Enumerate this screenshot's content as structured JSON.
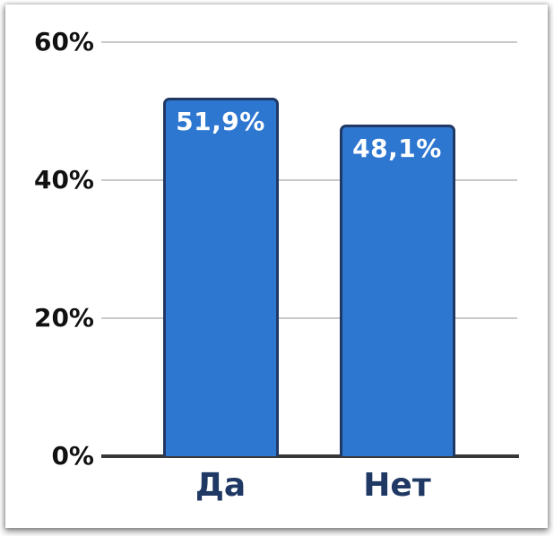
{
  "chart_data": {
    "type": "bar",
    "title": "",
    "xlabel": "",
    "ylabel": "",
    "categories": [
      "Да",
      "Нет"
    ],
    "values": [
      51.9,
      48.1
    ],
    "value_labels": [
      "51,9%",
      "48,1%"
    ],
    "ylim": [
      0,
      60
    ],
    "yticks": [
      0,
      20,
      40,
      60
    ],
    "ytick_labels": [
      "0%",
      "20%",
      "40%",
      "60%"
    ],
    "grid": "horizontal-gridlines-on",
    "legend": "none",
    "colors": {
      "bar_fill": "#2E77D0",
      "bar_border": "#1F3864",
      "bar_value_text": "#FFFFFF",
      "ytick_text": "#111111",
      "category_text": "#1F3864",
      "gridline": "#C9C9C9",
      "axis_line": "#383838",
      "background": "#FFFFFF"
    }
  }
}
